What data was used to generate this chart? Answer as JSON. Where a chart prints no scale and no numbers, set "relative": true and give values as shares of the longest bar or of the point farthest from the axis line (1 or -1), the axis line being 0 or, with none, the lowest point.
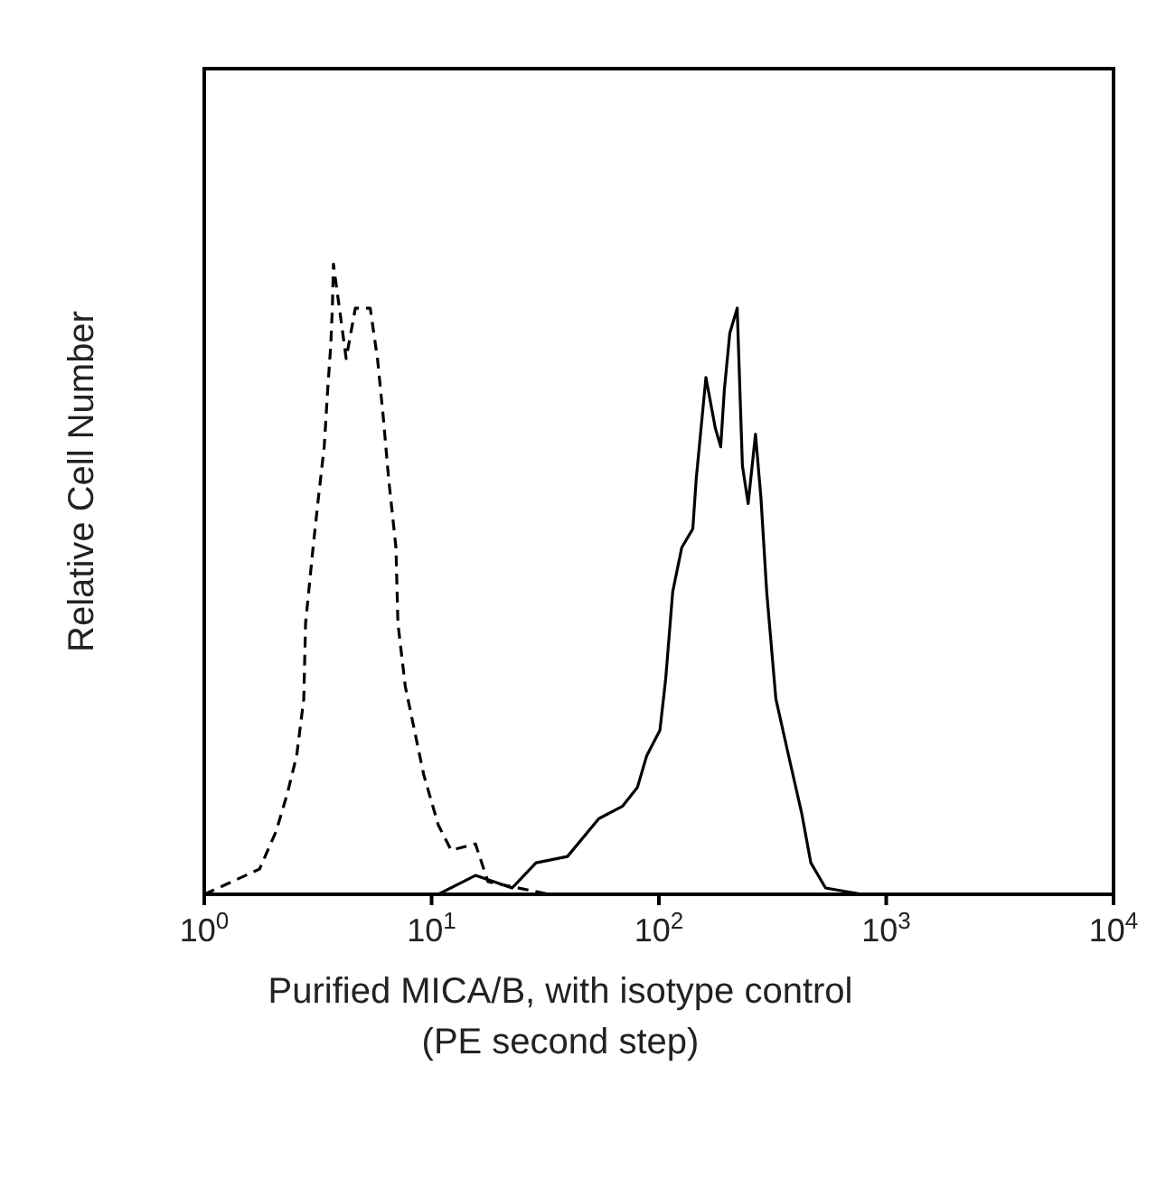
{
  "chart_data": {
    "type": "line",
    "relative": true,
    "log": "x",
    "ylabel": "Relative Cell Number",
    "xlabel": "Purified MICA/B, with isotype control\n(PE second step)",
    "xlim": [
      1,
      10000
    ],
    "xticks": [
      {
        "value": 1,
        "label": "10$^{0}$"
      },
      {
        "value": 10,
        "label": "10$^{1}$"
      },
      {
        "value": 100,
        "label": "10$^{2}$"
      },
      {
        "value": 1000,
        "label": "10$^{3}$"
      },
      {
        "value": 10000,
        "label": "10$^{4}$"
      }
    ],
    "grid": false,
    "legend": false,
    "marker": "none",
    "series": [
      {
        "color": "#000000",
        "line_style": "dashed",
        "x": [
          1,
          1.75,
          2.07,
          2.32,
          2.55,
          2.74,
          2.79,
          3.01,
          3.18,
          3.37,
          3.49,
          3.6,
          3.66,
          3.7,
          4.21,
          4.62,
          5.37,
          5.78,
          6.12,
          6.47,
          6.97,
          7.11,
          7.66,
          8.41,
          9.23,
          10.7,
          12.2,
          15.6,
          17.7,
          32.9,
          1000
        ],
        "values": [
          0,
          0.04,
          0.1,
          0.16,
          0.22,
          0.31,
          0.43,
          0.55,
          0.63,
          0.71,
          0.8,
          0.87,
          0.93,
          1,
          0.85,
          0.93,
          0.93,
          0.85,
          0.76,
          0.66,
          0.55,
          0.43,
          0.33,
          0.26,
          0.19,
          0.11,
          0.07,
          0.08,
          0.02,
          0,
          0
        ]
      },
      {
        "color": "#000000",
        "line_style": "solid",
        "x": [
          1,
          10.7,
          15.6,
          22.6,
          28.8,
          39.6,
          54.4,
          69.3,
          80.5,
          88.4,
          101,
          107,
          115,
          126,
          141,
          146,
          161,
          177,
          187,
          194,
          205,
          221,
          233,
          247,
          266,
          281,
          298,
          327,
          372,
          424,
          466,
          541,
          785,
          10000
        ],
        "values": [
          0,
          0,
          0.03,
          0.01,
          0.05,
          0.06,
          0.12,
          0.14,
          0.17,
          0.22,
          0.26,
          0.34,
          0.48,
          0.55,
          0.58,
          0.66,
          0.82,
          0.74,
          0.71,
          0.8,
          0.89,
          0.93,
          0.68,
          0.62,
          0.73,
          0.63,
          0.48,
          0.31,
          0.22,
          0.13,
          0.05,
          0.01,
          0,
          0
        ]
      }
    ]
  }
}
